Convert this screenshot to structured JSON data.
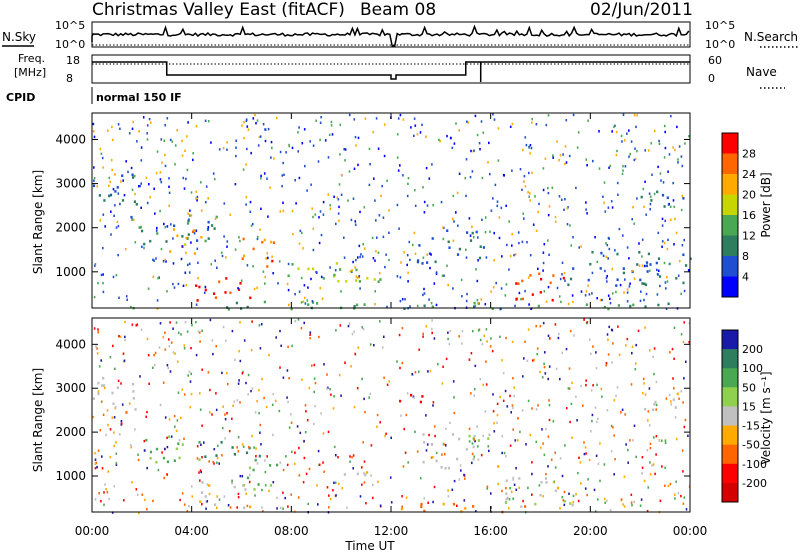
{
  "header": {
    "title": "Christmas Valley East (fitACF)",
    "beam": "Beam 08",
    "date": "02/Jun/2011"
  },
  "top_panels": {
    "nsky_label": "N.Sky",
    "nsearch_label": "N.Search",
    "noise_ticks_left": [
      "10^5",
      "10^0"
    ],
    "noise_ticks_right": [
      "10^5",
      "10^0"
    ],
    "freq_label_1": "Freq.",
    "freq_label_2": "[MHz]",
    "freq_ticks": [
      "18",
      "8"
    ],
    "nave_label": "Nave",
    "nave_ticks": [
      "60",
      "0"
    ],
    "cpid_label": "CPID",
    "cpid_value": "normal 150 IF"
  },
  "x_ticks": [
    "00:00",
    "04:00",
    "08:00",
    "12:00",
    "16:00",
    "20:00",
    "00:00"
  ],
  "x_title": "Time UT",
  "power_panel": {
    "y_title": "Slant Range [km]",
    "y_ticks": [
      "4000",
      "3000",
      "2000",
      "1000"
    ],
    "colorbar_title": "Power [dB]",
    "colorbar_ticks": [
      "28",
      "24",
      "20",
      "16",
      "12",
      "8",
      "4"
    ],
    "colorbar_colors": [
      "#ff0000",
      "#ff6600",
      "#ffaa00",
      "#c8d600",
      "#4aa852",
      "#2e7d5e",
      "#1f4fd0",
      "#0000ff"
    ]
  },
  "velocity_panel": {
    "y_title": "Slant Range [km]",
    "y_ticks": [
      "4000",
      "3000",
      "2000",
      "1000"
    ],
    "colorbar_title": "Velocity [m s⁻¹]",
    "colorbar_ticks": [
      "200",
      "100",
      "50",
      "15",
      "-15",
      "-50",
      "-100",
      "-200"
    ],
    "colorbar_colors": [
      "#1a1aa8",
      "#2e7d5e",
      "#4aa852",
      "#8fd14f",
      "#c0c0c0",
      "#ffaa00",
      "#ff6600",
      "#ff0000",
      "#d40000"
    ]
  },
  "chart_data": [
    {
      "type": "heatmap",
      "title": "Power",
      "xlabel": "Time UT",
      "ylabel": "Slant Range [km]",
      "xlim": [
        0,
        24
      ],
      "ylim": [
        180,
        4600
      ],
      "colorbar": {
        "label": "Power [dB]",
        "ticks": [
          28,
          24,
          20,
          16,
          12,
          8,
          4
        ]
      },
      "bands": [
        {
          "t_start": 0.0,
          "t_end": 2.0,
          "r_start": 2500,
          "r_end": 3300,
          "value_db": 6
        },
        {
          "t_start": 1.5,
          "t_end": 5.0,
          "r_start": 1500,
          "r_end": 2300,
          "value_db": 8
        },
        {
          "t_start": 3.0,
          "t_end": 4.5,
          "r_start": 1300,
          "r_end": 2000,
          "value_db": 20
        },
        {
          "t_start": 4.0,
          "t_end": 6.5,
          "r_start": 300,
          "r_end": 900,
          "value_db": 28
        },
        {
          "t_start": 6.0,
          "t_end": 7.5,
          "r_start": 900,
          "r_end": 1800,
          "value_db": 24
        },
        {
          "t_start": 7.5,
          "t_end": 12.0,
          "r_start": 800,
          "r_end": 1300,
          "value_db": 14
        },
        {
          "t_start": 13.0,
          "t_end": 16.0,
          "r_start": 1200,
          "r_end": 2000,
          "value_db": 6
        },
        {
          "t_start": 16.5,
          "t_end": 19.0,
          "r_start": 300,
          "r_end": 1000,
          "value_db": 26
        },
        {
          "t_start": 19.0,
          "t_end": 24.0,
          "r_start": 700,
          "r_end": 1500,
          "value_db": 6
        },
        {
          "t_start": 22.0,
          "t_end": 24.0,
          "r_start": 2500,
          "r_end": 2900,
          "value_db": 6
        },
        {
          "t_start": 0.0,
          "t_end": 24.0,
          "r_start": 180,
          "r_end": 350,
          "value_db": 10
        }
      ]
    },
    {
      "type": "heatmap",
      "title": "Velocity",
      "xlabel": "Time UT",
      "ylabel": "Slant Range [km]",
      "xlim": [
        0,
        24
      ],
      "ylim": [
        180,
        4600
      ],
      "colorbar": {
        "label": "Velocity [m s⁻¹]",
        "ticks": [
          200,
          100,
          50,
          15,
          -15,
          -50,
          -100,
          -200
        ]
      },
      "bands": [
        {
          "t_start": 0.0,
          "t_end": 2.0,
          "r_start": 2500,
          "r_end": 3300,
          "value_ms": 0
        },
        {
          "t_start": 2.0,
          "t_end": 4.5,
          "r_start": 1300,
          "r_end": 2000,
          "value_ms": 60
        },
        {
          "t_start": 4.5,
          "t_end": 7.0,
          "r_start": 1400,
          "r_end": 1800,
          "value_ms": 150
        },
        {
          "t_start": 6.0,
          "t_end": 7.5,
          "r_start": 800,
          "r_end": 1400,
          "value_ms": 60
        },
        {
          "t_start": 4.0,
          "t_end": 6.5,
          "r_start": 300,
          "r_end": 900,
          "value_ms": 0
        },
        {
          "t_start": 10.0,
          "t_end": 11.5,
          "r_start": 800,
          "r_end": 1200,
          "value_ms": 0
        },
        {
          "t_start": 12.0,
          "t_end": 13.5,
          "r_start": 2600,
          "r_end": 3000,
          "value_ms": -150
        },
        {
          "t_start": 13.0,
          "t_end": 16.5,
          "r_start": 1200,
          "r_end": 2000,
          "value_ms": 0
        },
        {
          "t_start": 16.5,
          "t_end": 19.5,
          "r_start": 300,
          "r_end": 1000,
          "value_ms": 0
        },
        {
          "t_start": 22.0,
          "t_end": 24.0,
          "r_start": 2500,
          "r_end": 2900,
          "value_ms": 0
        },
        {
          "t_start": 12.0,
          "t_end": 18.0,
          "r_start": 180,
          "r_end": 400,
          "value_ms": -60
        }
      ]
    }
  ]
}
